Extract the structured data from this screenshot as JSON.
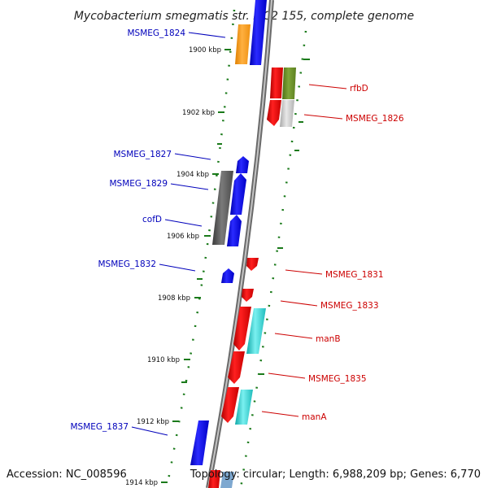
{
  "title": "Mycobacterium smegmatis str. MC2 155, complete genome",
  "footer": {
    "accession": "Accession: NC_008596",
    "topology": "Topology: circular; Length: 6,988,209 bp; Genes: 6,770"
  },
  "colors": {
    "forward_label": "#0000bb",
    "reverse_label": "#cc0000",
    "backbone": "#888888",
    "gc_marks": "#1a7a1a"
  },
  "ticks": [
    "1900 kbp",
    "1902 kbp",
    "1904 kbp",
    "1906 kbp",
    "1908 kbp",
    "1910 kbp",
    "1912 kbp",
    "1914 kbp"
  ],
  "labels_left": [
    "MSMEG_1824",
    "MSMEG_1827",
    "MSMEG_1829",
    "cofD",
    "MSMEG_1832",
    "MSMEG_1837"
  ],
  "labels_right": [
    "rfbD",
    "MSMEG_1826",
    "MSMEG_1831",
    "MSMEG_1833",
    "manB",
    "MSMEG_1835",
    "manA"
  ]
}
